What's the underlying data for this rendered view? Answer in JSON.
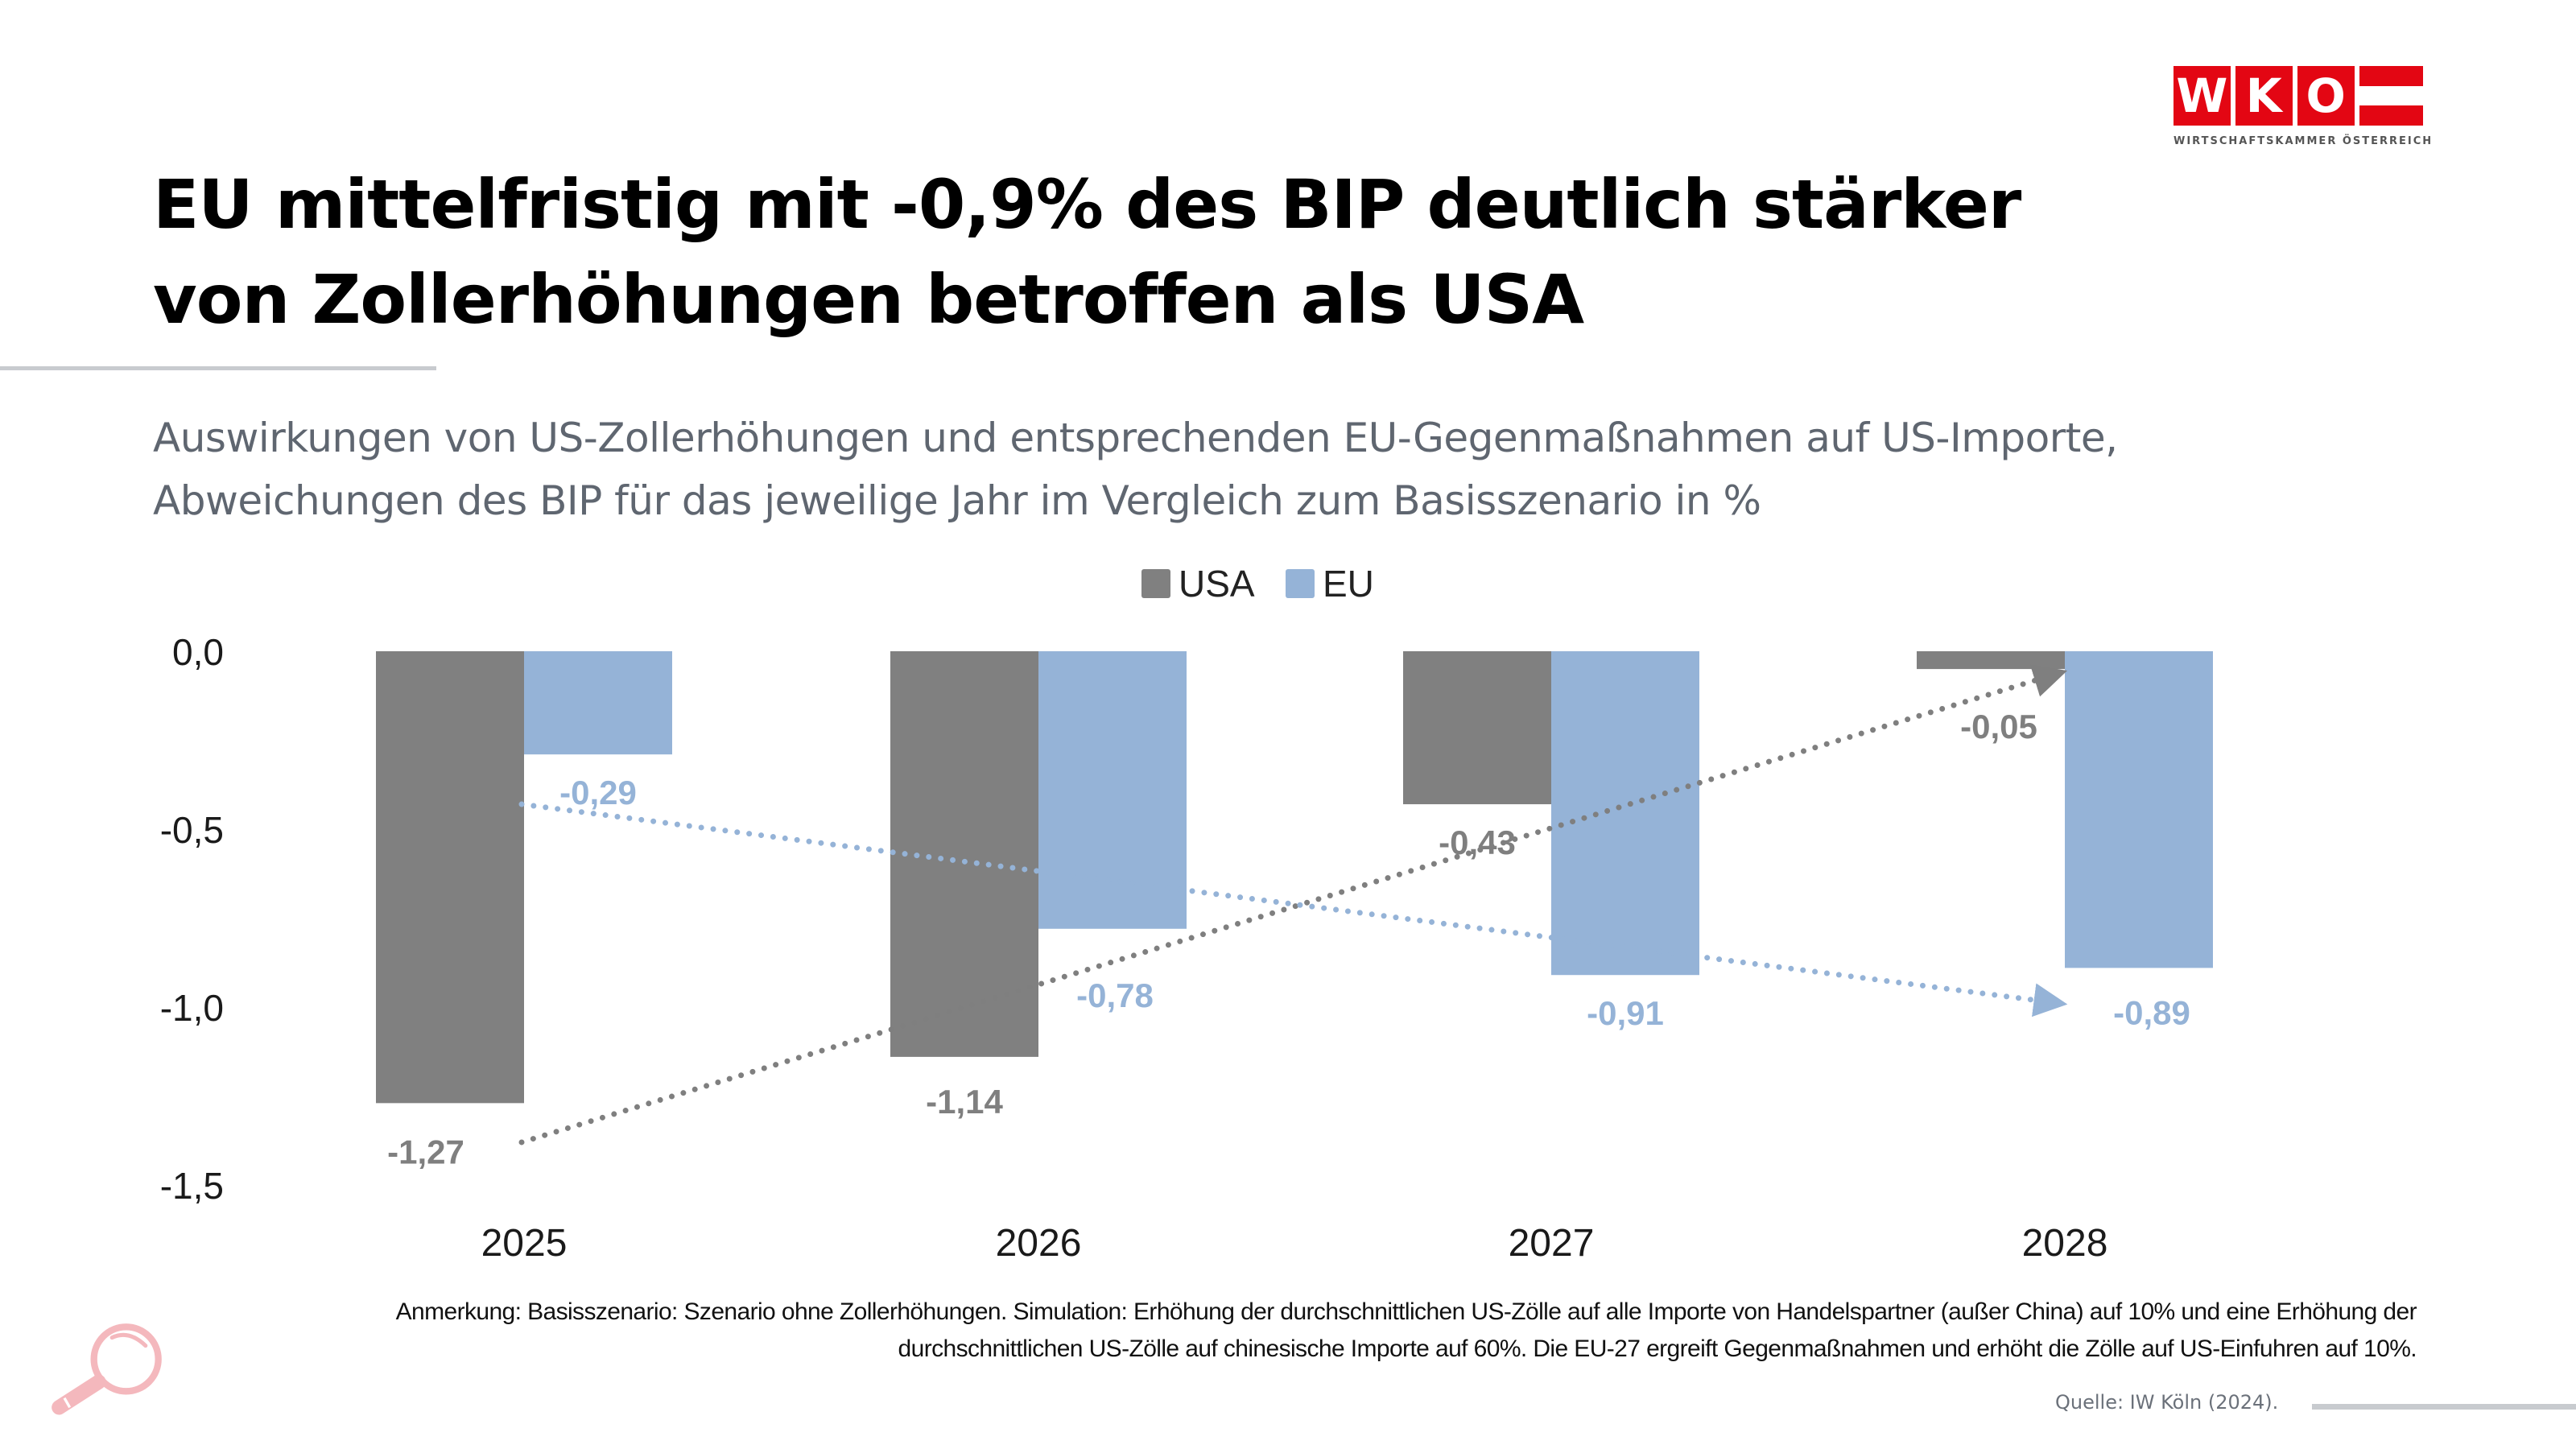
{
  "header": {
    "title_line1": "EU mittelfristig mit -0,9% des BIP deutlich stärker",
    "title_line2": "von Zollerhöhungen betroffen als USA",
    "subtitle_line1": "Auswirkungen von US-Zollerhöhungen und entsprechenden EU-Gegenmaßnahmen auf US-Importe,",
    "subtitle_line2": "Abweichungen des BIP für das jeweilige Jahr im Vergleich zum Basisszenario in %"
  },
  "logo": {
    "letters": [
      "W",
      "K",
      "O"
    ],
    "tagline": "WIRTSCHAFTSKAMMER ÖSTERREICH",
    "brand_color": "#e30613"
  },
  "chart_data": {
    "type": "bar",
    "title": "",
    "xlabel": "",
    "ylabel": "",
    "categories": [
      "2025",
      "2026",
      "2027",
      "2028"
    ],
    "series": [
      {
        "name": "USA",
        "color": "#808080",
        "values": [
          -1.27,
          -1.14,
          -0.43,
          -0.05
        ],
        "labels": [
          "-1,27",
          "-1,14",
          "-0,43",
          "-0,05"
        ]
      },
      {
        "name": "EU",
        "color": "#95b3d7",
        "values": [
          -0.29,
          -0.78,
          -0.91,
          -0.89
        ],
        "labels": [
          "-0,29",
          "-0,78",
          "-0,91",
          "-0,89"
        ]
      }
    ],
    "ylim": [
      -1.5,
      0
    ],
    "yticks": [
      0,
      -0.5,
      -1.0,
      -1.5
    ],
    "ytick_labels": [
      "0,0",
      "-0,5",
      "-1,0",
      "-1,5"
    ],
    "grid": false,
    "legend": "top-center",
    "trend_lines": [
      {
        "series": "USA",
        "style": "dotted-arrow",
        "direction": "rising",
        "from": -1.38,
        "to": -0.06
      },
      {
        "series": "EU",
        "style": "dotted-arrow",
        "direction": "falling",
        "from": -0.43,
        "to": -0.99
      }
    ]
  },
  "footer": {
    "note_line1": "Anmerkung: Basisszenario: Szenario ohne Zollerhöhungen. Simulation: Erhöhung der durchschnittlichen US-Zölle auf alle Importe von Handelspartner (außer China) auf 10% und eine Erhöhung der",
    "note_line2": "durchschnittlichen US-Zölle auf chinesische Importe auf 60%. Die EU-27 ergreift Gegenmaßnahmen und erhöht die Zölle auf US-Einfuhren auf 10%.",
    "source": "Quelle:  IW Köln (2024)."
  },
  "icons": {
    "corner_icon": "magnifier-icon"
  }
}
